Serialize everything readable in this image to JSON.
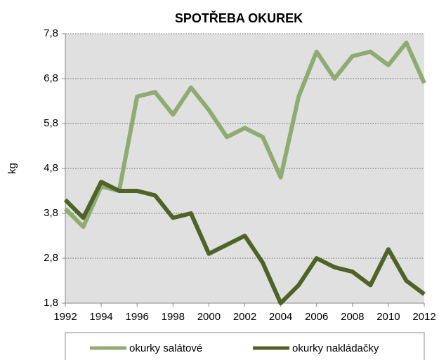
{
  "chart_data": {
    "type": "line",
    "title": "SPOTŘEBA OKUREK",
    "y_label": "kg",
    "x": [
      1992,
      1993,
      1994,
      1995,
      1996,
      1997,
      1998,
      1999,
      2000,
      2001,
      2002,
      2003,
      2004,
      2005,
      2006,
      2007,
      2008,
      2009,
      2010,
      2011,
      2012
    ],
    "xlim": [
      1992,
      2012
    ],
    "xticks": [
      1992,
      1994,
      1996,
      1998,
      2000,
      2002,
      2004,
      2006,
      2008,
      2010,
      2012
    ],
    "ylim": [
      1.8,
      7.8
    ],
    "yticks": [
      {
        "value": 1.8,
        "label": "1,8"
      },
      {
        "value": 2.8,
        "label": "2,8"
      },
      {
        "value": 3.8,
        "label": "3,8"
      },
      {
        "value": 4.8,
        "label": "4,8"
      },
      {
        "value": 5.8,
        "label": "5,8"
      },
      {
        "value": 6.8,
        "label": "6,8"
      },
      {
        "value": 7.8,
        "label": "7,8"
      }
    ],
    "grid": true,
    "legend": "bottom",
    "series": [
      {
        "name": "okurky salátové",
        "color": "#8eab72",
        "values": [
          3.9,
          3.5,
          4.4,
          4.3,
          6.4,
          6.5,
          6.0,
          6.6,
          6.1,
          5.5,
          5.7,
          5.5,
          4.6,
          6.4,
          7.4,
          6.8,
          7.3,
          7.4,
          7.1,
          7.6,
          6.7
        ]
      },
      {
        "name": "okurky nakládačky",
        "color": "#4f6228",
        "values": [
          4.1,
          3.7,
          4.5,
          4.3,
          4.3,
          4.2,
          3.7,
          3.8,
          2.9,
          3.1,
          3.3,
          2.7,
          1.8,
          2.2,
          2.8,
          2.6,
          2.5,
          2.2,
          3.0,
          2.3,
          2.0
        ]
      }
    ]
  }
}
